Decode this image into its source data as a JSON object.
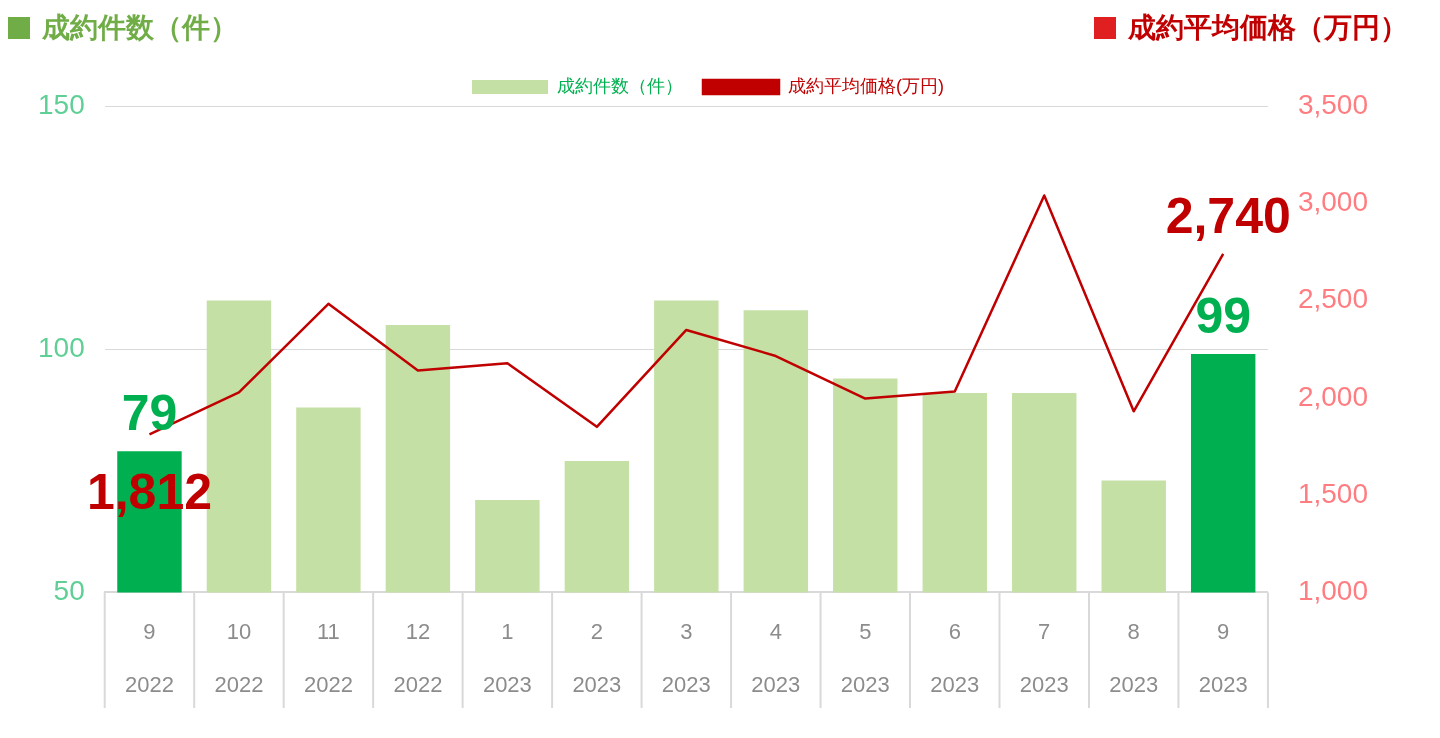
{
  "chart_data": {
    "type": "bar",
    "ylabel": "成約件数（件）",
    "y2label": "成約平均価格（万円）",
    "categories": [
      "9\n2022",
      "10\n2022",
      "11\n2022",
      "12\n2022",
      "1\n2023",
      "2\n2023",
      "3\n2023",
      "4\n2023",
      "5\n2023",
      "6\n2023",
      "7\n2023",
      "8\n2023",
      "9\n2023"
    ],
    "series": [
      {
        "name": "成約件数（件）",
        "color": "#c5e0a5",
        "colors": [
          "#00b050",
          "#c5e0a5",
          "#c5e0a5",
          "#c5e0a5",
          "#c5e0a5",
          "#c5e0a5",
          "#c5e0a5",
          "#c5e0a5",
          "#c5e0a5",
          "#c5e0a5",
          "#c5e0a5",
          "#c5e0a5",
          "#00b050"
        ],
        "values": [
          79,
          110,
          88,
          105,
          69,
          77,
          110,
          108,
          94,
          91,
          91,
          73,
          99
        ],
        "value_labels": [
          "79",
          null,
          null,
          null,
          null,
          null,
          null,
          null,
          null,
          null,
          null,
          null,
          "99"
        ]
      },
      {
        "name": "成約平均価格(万円)",
        "type": "line",
        "axis": "y2",
        "color": "#c00000",
        "values": [
          1812,
          2028,
          2483,
          2140,
          2178,
          1851,
          2349,
          2215,
          1996,
          2033,
          3040,
          1931,
          2740
        ],
        "value_labels": [
          "1,812",
          null,
          null,
          null,
          null,
          null,
          null,
          null,
          null,
          null,
          null,
          null,
          "2,740"
        ]
      }
    ],
    "ylim": [
      50,
      150
    ],
    "yticks": [
      50,
      100,
      150
    ],
    "y2lim": [
      1000,
      3500
    ],
    "y2ticks": [
      {
        "value": 1000,
        "label": "1,000"
      },
      {
        "value": 1500,
        "label": "1,500"
      },
      {
        "value": 2000,
        "label": "2,000"
      },
      {
        "value": 2500,
        "label": "2,500"
      },
      {
        "value": 3000,
        "label": "3,000"
      },
      {
        "value": 3500,
        "label": "3,500"
      }
    ],
    "grid": "y",
    "legend": "top",
    "marker": "none",
    "line_style": "solid"
  }
}
